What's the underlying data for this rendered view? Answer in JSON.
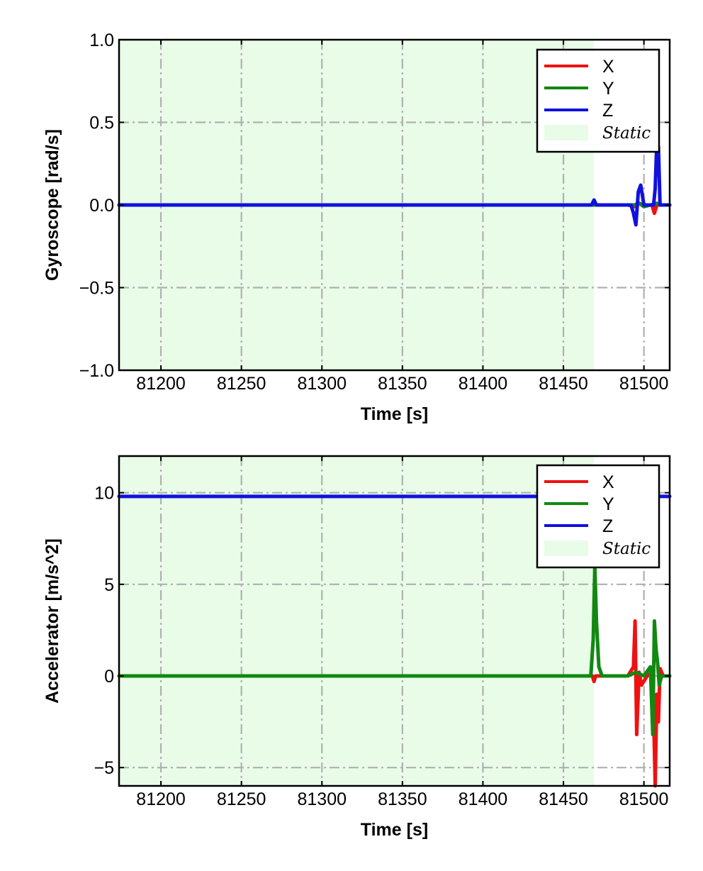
{
  "colors": {
    "x": "#ee1111",
    "y": "#118811",
    "z": "#1111dd",
    "static": "#e8fce8",
    "grid": "#b0b0b0"
  },
  "chart_data": [
    {
      "type": "line",
      "xlabel": "Time [s]",
      "ylabel": "Gyroscope [rad/s]",
      "xlim": [
        81174,
        81516
      ],
      "ylim": [
        -1.0,
        1.0
      ],
      "xticks": [
        81200,
        81250,
        81300,
        81350,
        81400,
        81450,
        81500
      ],
      "xtick_labels": [
        "81200",
        "81250",
        "81300",
        "81350",
        "81400",
        "81450",
        "81500"
      ],
      "yticks": [
        -1.0,
        -0.5,
        0.0,
        0.5,
        1.0
      ],
      "ytick_labels": [
        "−1.0",
        "−0.5",
        "0.0",
        "0.5",
        "1.0"
      ],
      "grid": true,
      "legend_position": "top-right",
      "static_region": [
        81174,
        81469
      ],
      "legend": [
        "X",
        "Y",
        "Z",
        "Static"
      ],
      "series": [
        {
          "name": "X",
          "color_key": "x",
          "x": [
            81174,
            81469,
            81490,
            81494,
            81497,
            81500,
            81505,
            81506.5,
            81508,
            81510,
            81516
          ],
          "y": [
            0,
            0,
            0,
            -0.01,
            0.01,
            0,
            0,
            -0.05,
            0,
            0,
            0
          ]
        },
        {
          "name": "Y",
          "color_key": "y",
          "x": [
            81174,
            81469,
            81494,
            81497,
            81500,
            81504,
            81508,
            81510,
            81516
          ],
          "y": [
            0,
            0,
            0,
            0.01,
            -0.01,
            0,
            0.01,
            0,
            0
          ]
        },
        {
          "name": "Z",
          "color_key": "z",
          "x": [
            81174,
            81467.5,
            81469,
            81470.5,
            81492,
            81493.5,
            81495,
            81496.5,
            81498,
            81500,
            81506,
            81507,
            81508,
            81509,
            81510,
            81512,
            81516
          ],
          "y": [
            0,
            0,
            0.03,
            0,
            0,
            -0.05,
            -0.12,
            0.08,
            0.12,
            0,
            0,
            0.1,
            0.38,
            0.35,
            0,
            0,
            0
          ]
        }
      ]
    },
    {
      "type": "line",
      "xlabel": "Time [s]",
      "ylabel": "Accelerator [m/s^2]",
      "xlim": [
        81174,
        81516
      ],
      "ylim": [
        -6.0,
        12.0
      ],
      "xticks": [
        81200,
        81250,
        81300,
        81350,
        81400,
        81450,
        81500
      ],
      "xtick_labels": [
        "81200",
        "81250",
        "81300",
        "81350",
        "81400",
        "81450",
        "81500"
      ],
      "yticks": [
        -5,
        0,
        5,
        10
      ],
      "ytick_labels": [
        "−5",
        "0",
        "5",
        "10"
      ],
      "grid": true,
      "legend_position": "top-right",
      "static_region": [
        81174,
        81469
      ],
      "legend": [
        "X",
        "Y",
        "Z",
        "Static"
      ],
      "series": [
        {
          "name": "X",
          "color_key": "x",
          "x": [
            81174,
            81468,
            81469,
            81470,
            81490,
            81493.5,
            81494.5,
            81495.5,
            81497,
            81498.5,
            81502,
            81505,
            81506,
            81507,
            81508,
            81509,
            81510,
            81512,
            81516
          ],
          "y": [
            0,
            0,
            -0.3,
            0,
            0,
            0.5,
            3.0,
            -3.2,
            0.2,
            -0.5,
            0,
            0.2,
            -2.0,
            -6.0,
            -1.0,
            -2.5,
            0.4,
            0,
            0
          ]
        },
        {
          "name": "Y",
          "color_key": "y",
          "x": [
            81174,
            81467,
            81468.5,
            81469.5,
            81470.5,
            81472,
            81474,
            81490,
            81495,
            81500,
            81504,
            81505.5,
            81506.5,
            81507.5,
            81508.5,
            81509.5,
            81511,
            81516
          ],
          "y": [
            0,
            0,
            2.0,
            6.0,
            3.0,
            0.5,
            0,
            0,
            0.2,
            0,
            0.5,
            -3.2,
            3.0,
            1.5,
            0.7,
            -0.5,
            0,
            0
          ]
        },
        {
          "name": "Z",
          "color_key": "z",
          "x": [
            81174,
            81516
          ],
          "y": [
            9.8,
            9.8
          ]
        }
      ]
    }
  ]
}
